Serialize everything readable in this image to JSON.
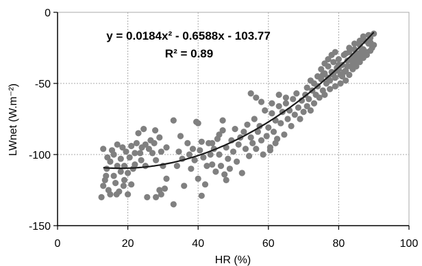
{
  "chart_data": {
    "type": "scatter",
    "title": "",
    "xlabel": "HR (%)",
    "ylabel": "LWnet  (W.m⁻²)",
    "xlim": [
      0,
      100
    ],
    "ylim": [
      -150,
      0
    ],
    "xticks": [
      "0",
      "20",
      "40",
      "60",
      "80",
      "100"
    ],
    "yticks": [
      "0",
      "-50",
      "-100",
      "-150"
    ],
    "grid": true,
    "annotations": {
      "equation": "y = 0.0184x² - 0.6588x - 103.77",
      "r_squared": "R² = 0.89"
    },
    "trendline": {
      "type": "polynomial",
      "coefficients": [
        0.0184,
        -0.6588,
        -103.77
      ],
      "x_range": [
        13,
        90
      ]
    },
    "series": [
      {
        "color": "#808080",
        "points": [
          [
            12.5,
            -130
          ],
          [
            13,
            -122
          ],
          [
            13.5,
            -118
          ],
          [
            13,
            -96
          ],
          [
            14,
            -110
          ],
          [
            14.5,
            -125
          ],
          [
            15,
            -105
          ],
          [
            15,
            -128
          ],
          [
            16,
            -115
          ],
          [
            16,
            -100
          ],
          [
            16.5,
            -120
          ],
          [
            17,
            -108
          ],
          [
            17,
            -93
          ],
          [
            17.5,
            -126
          ],
          [
            18,
            -112
          ],
          [
            18,
            -103
          ],
          [
            18.5,
            -95
          ],
          [
            19,
            -118
          ],
          [
            19,
            -108
          ],
          [
            19.5,
            -98
          ],
          [
            20,
            -128
          ],
          [
            20,
            -113
          ],
          [
            20.5,
            -102
          ],
          [
            21,
            -94
          ],
          [
            21,
            -121
          ],
          [
            21.5,
            -110
          ],
          [
            22,
            -99
          ],
          [
            22.5,
            -92
          ],
          [
            22,
            -107
          ],
          [
            13.8,
            -115
          ],
          [
            15.5,
            -97
          ],
          [
            14.2,
            -102
          ],
          [
            16.8,
            -128
          ],
          [
            18.8,
            -122
          ],
          [
            23,
            -85
          ],
          [
            23.5,
            -99
          ],
          [
            24,
            -95
          ],
          [
            24.5,
            -82
          ],
          [
            25,
            -93
          ],
          [
            25,
            -108
          ],
          [
            26,
            -96
          ],
          [
            26.5,
            -90
          ],
          [
            27,
            -99
          ],
          [
            27.5,
            -92
          ],
          [
            28,
            -104
          ],
          [
            29,
            -88
          ],
          [
            29.5,
            -98
          ],
          [
            30,
            -108
          ],
          [
            31,
            -95
          ],
          [
            23.8,
            -104
          ],
          [
            27.8,
            -83
          ],
          [
            29,
            -125
          ],
          [
            25.5,
            -130
          ],
          [
            28,
            -130
          ],
          [
            29.5,
            -128
          ],
          [
            30.5,
            -124
          ],
          [
            31,
            -117
          ],
          [
            33,
            -135
          ],
          [
            33,
            -76
          ],
          [
            34,
            -108
          ],
          [
            34.5,
            -98
          ],
          [
            35,
            -87
          ],
          [
            35.5,
            -103
          ],
          [
            36,
            -122
          ],
          [
            37,
            -92
          ],
          [
            37.5,
            -100
          ],
          [
            38,
            -110
          ],
          [
            38.5,
            -96
          ],
          [
            39,
            -104
          ],
          [
            39.5,
            -77
          ],
          [
            40,
            -78
          ],
          [
            40,
            -117
          ],
          [
            40.5,
            -97
          ],
          [
            41,
            -91
          ],
          [
            41.5,
            -102
          ],
          [
            41,
            -129
          ],
          [
            42,
            -121
          ],
          [
            42.5,
            -108
          ],
          [
            43,
            -92
          ],
          [
            43.5,
            -100
          ],
          [
            44,
            -107
          ],
          [
            44.5,
            -96
          ],
          [
            45,
            -112
          ],
          [
            45.5,
            -89
          ],
          [
            46,
            -100
          ],
          [
            46.5,
            -108
          ],
          [
            47,
            -83
          ],
          [
            47.5,
            -114
          ],
          [
            48,
            -95
          ],
          [
            48.5,
            -103
          ],
          [
            49,
            -110
          ],
          [
            49.5,
            -90
          ],
          [
            50,
            -98
          ],
          [
            50.5,
            -82
          ],
          [
            51,
            -105
          ],
          [
            51.5,
            -93
          ],
          [
            52,
            -88
          ],
          [
            52.5,
            -113
          ],
          [
            53,
            -84
          ],
          [
            53.5,
            -96
          ],
          [
            54,
            -79
          ],
          [
            54.5,
            -101
          ],
          [
            55,
            -88
          ],
          [
            55.5,
            -92
          ],
          [
            56,
            -75
          ],
          [
            56.5,
            -96
          ],
          [
            57,
            -84
          ],
          [
            57.5,
            -80
          ],
          [
            58,
            -90
          ],
          [
            58.5,
            -100
          ],
          [
            59,
            -69
          ],
          [
            59.5,
            -87
          ],
          [
            60,
            -81
          ],
          [
            60.5,
            -97
          ],
          [
            61,
            -71
          ],
          [
            61.5,
            -84
          ],
          [
            62,
            -76
          ],
          [
            62.5,
            -89
          ],
          [
            63,
            -66
          ],
          [
            63.5,
            -78
          ],
          [
            64,
            -70
          ],
          [
            64.5,
            -86
          ],
          [
            65,
            -64
          ],
          [
            65.5,
            -75
          ],
          [
            66,
            -69
          ],
          [
            66.5,
            -80
          ],
          [
            67,
            -61
          ],
          [
            67.5,
            -72
          ],
          [
            68,
            -57
          ],
          [
            68.5,
            -67
          ],
          [
            69,
            -75
          ],
          [
            69.5,
            -62
          ],
          [
            70,
            -70
          ],
          [
            70.5,
            -58
          ],
          [
            71,
            -66
          ],
          [
            71.5,
            -61
          ],
          [
            72,
            -69
          ],
          [
            72.5,
            -55
          ],
          [
            73,
            -64
          ],
          [
            73.5,
            -58
          ],
          [
            55,
            -57
          ],
          [
            56.5,
            -60
          ],
          [
            58,
            -63
          ],
          [
            61,
            -64
          ],
          [
            63,
            -58
          ],
          [
            65,
            -60
          ],
          [
            62,
            -92
          ],
          [
            60.5,
            -95
          ],
          [
            44,
            -92
          ],
          [
            48,
            -118
          ],
          [
            47,
            -76
          ],
          [
            46,
            -86
          ],
          [
            74,
            -52
          ],
          [
            74.5,
            -60
          ],
          [
            75,
            -47
          ],
          [
            75.5,
            -55
          ],
          [
            76,
            -43
          ],
          [
            76.5,
            -50
          ],
          [
            77,
            -38
          ],
          [
            77.5,
            -48
          ],
          [
            78,
            -42
          ],
          [
            78.5,
            -35
          ],
          [
            79,
            -46
          ],
          [
            79.5,
            -39
          ],
          [
            80,
            -33
          ],
          [
            80.5,
            -44
          ],
          [
            81,
            -37
          ],
          [
            81.5,
            -30
          ],
          [
            82,
            -41
          ],
          [
            82.5,
            -34
          ],
          [
            83,
            -28
          ],
          [
            83.5,
            -38
          ],
          [
            84,
            -32
          ],
          [
            84.5,
            -26
          ],
          [
            85,
            -35
          ],
          [
            85.5,
            -29
          ],
          [
            86,
            -23
          ],
          [
            86.5,
            -31
          ],
          [
            87,
            -26
          ],
          [
            87.5,
            -20
          ],
          [
            88,
            -28
          ],
          [
            88.5,
            -22
          ],
          [
            89,
            -18
          ],
          [
            89.5,
            -25
          ],
          [
            90,
            -15
          ],
          [
            75,
            -40
          ],
          [
            76,
            -36
          ],
          [
            77,
            -33
          ],
          [
            78,
            -30
          ],
          [
            79,
            -28
          ],
          [
            80,
            -40
          ],
          [
            81,
            -45
          ],
          [
            82,
            -48
          ],
          [
            83,
            -44
          ],
          [
            84,
            -40
          ],
          [
            85,
            -38
          ],
          [
            86,
            -35
          ],
          [
            87,
            -32
          ],
          [
            88,
            -30
          ],
          [
            89,
            -27
          ],
          [
            76,
            -58
          ],
          [
            77.5,
            -54
          ],
          [
            79,
            -52
          ],
          [
            80.5,
            -50
          ],
          [
            82,
            -29
          ],
          [
            83,
            -25
          ],
          [
            84.5,
            -22
          ],
          [
            86,
            -20
          ],
          [
            87,
            -17
          ],
          [
            88.5,
            -16
          ],
          [
            74,
            -45
          ],
          [
            73,
            -50
          ],
          [
            72,
            -48
          ],
          [
            71,
            -53
          ],
          [
            75.5,
            -44
          ],
          [
            78.5,
            -44
          ],
          [
            80,
            -37
          ],
          [
            81.5,
            -42
          ],
          [
            83.5,
            -33
          ],
          [
            85,
            -30
          ],
          [
            86.5,
            -27
          ],
          [
            89,
            -21
          ],
          [
            90,
            -23
          ],
          [
            77,
            -46
          ],
          [
            79.5,
            -41
          ],
          [
            82.5,
            -38
          ],
          [
            84,
            -36
          ],
          [
            85.5,
            -33
          ],
          [
            87.5,
            -29
          ]
        ]
      }
    ]
  }
}
